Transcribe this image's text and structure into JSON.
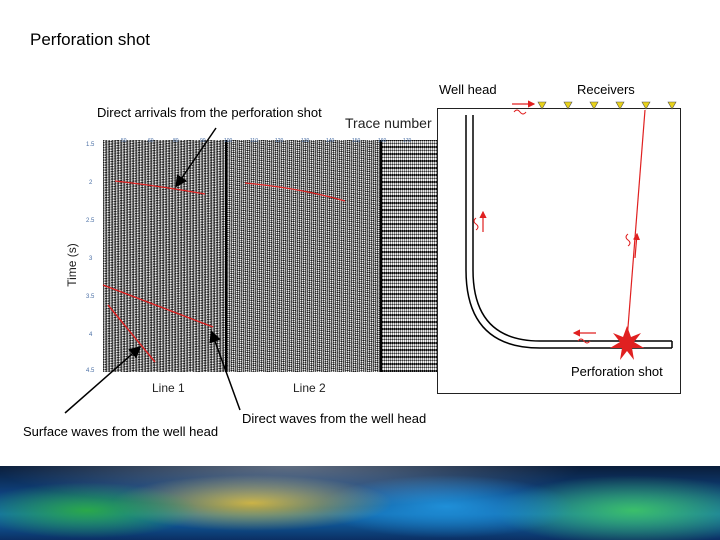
{
  "title": "Perforation shot",
  "labels": {
    "well_head": "Well head",
    "receivers": "Receivers",
    "direct_arrivals": "Direct arrivals from the perforation shot",
    "trace_number": "Trace number",
    "time_axis": "Time (s)",
    "line1": "Line 1",
    "line2": "Line 2",
    "perforation_shot": "Perforation shot",
    "direct_waves": "Direct waves from the well head",
    "surface_waves": "Surface waves from the well head"
  },
  "x_ticks": [
    "50",
    "60",
    "80",
    "90",
    "100",
    "110",
    "120",
    "130",
    "140",
    "150",
    "160",
    "170"
  ],
  "y_ticks": [
    "1.5",
    "2",
    "2.5",
    "3",
    "3.5",
    "4",
    "4.5"
  ],
  "colors": {
    "pick": "#e02020",
    "arrow": "#000000",
    "receiver": "#e8d21a",
    "shot": "#e02020"
  }
}
